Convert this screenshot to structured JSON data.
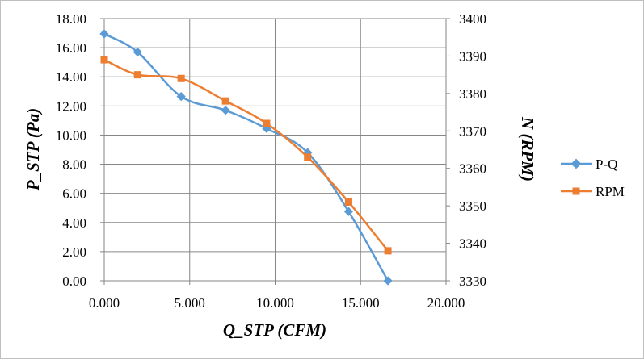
{
  "chart_data": {
    "type": "line",
    "xlabel": "Q_STP (CFM)",
    "ylabel": "P_STP (Pa)",
    "y2label": "N (RPM)",
    "xlim": [
      0,
      20
    ],
    "ylim": [
      0,
      18
    ],
    "y2lim": [
      3330,
      3400
    ],
    "x_ticks": [
      "0.000",
      "5.000",
      "10.000",
      "15.000",
      "20.000"
    ],
    "y_ticks": [
      "0.00",
      "2.00",
      "4.00",
      "6.00",
      "8.00",
      "10.00",
      "12.00",
      "14.00",
      "16.00",
      "18.00"
    ],
    "y2_ticks": [
      "3330",
      "3340",
      "3350",
      "3360",
      "3370",
      "3380",
      "3390",
      "3400"
    ],
    "grid": true,
    "legend_position": "right",
    "series": [
      {
        "name": "P-Q",
        "axis": "left",
        "color": "#5b9bd5",
        "marker": "diamond",
        "x": [
          0.0,
          1.95,
          4.5,
          7.1,
          9.5,
          11.9,
          14.3,
          16.6
        ],
        "y": [
          16.95,
          15.7,
          12.65,
          11.7,
          10.45,
          8.8,
          4.75,
          0.0
        ]
      },
      {
        "name": "RPM",
        "axis": "right",
        "color": "#ed7d31",
        "marker": "square",
        "x": [
          0.0,
          1.95,
          4.5,
          7.1,
          9.5,
          11.9,
          14.3,
          16.6
        ],
        "y": [
          3389,
          3385,
          3384,
          3378,
          3372,
          3363,
          3351,
          3338
        ]
      }
    ]
  }
}
